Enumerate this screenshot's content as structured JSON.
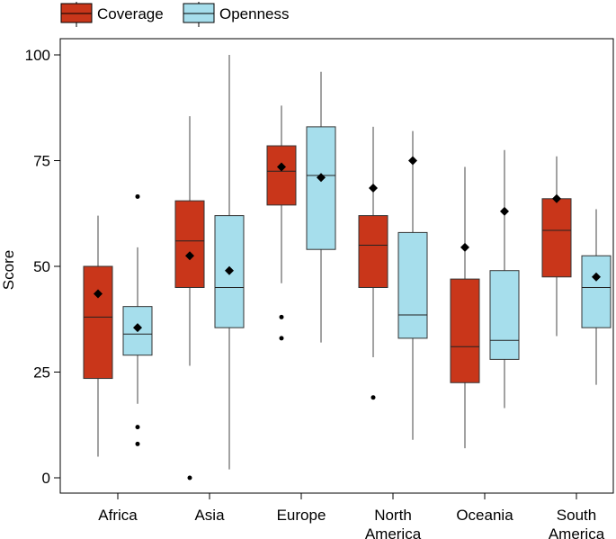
{
  "chart_data": {
    "type": "boxplot",
    "ylabel": "Score",
    "ylim": [
      0,
      100
    ],
    "yticks": [
      0,
      25,
      50,
      75,
      100
    ],
    "categories": [
      {
        "lines": [
          "Africa"
        ]
      },
      {
        "lines": [
          "Asia"
        ]
      },
      {
        "lines": [
          "Europe"
        ]
      },
      {
        "lines": [
          "North",
          "America"
        ]
      },
      {
        "lines": [
          "Oceania"
        ]
      },
      {
        "lines": [
          "South",
          "America"
        ]
      }
    ],
    "series": [
      {
        "name": "Coverage",
        "color": "#c9361a",
        "boxes": [
          {
            "whisker_low": 5,
            "q1": 23.5,
            "median": 38,
            "q3": 50,
            "whisker_high": 62,
            "mean": 43.5,
            "outliers": []
          },
          {
            "whisker_low": 26.5,
            "q1": 45,
            "median": 56,
            "q3": 65.5,
            "whisker_high": 85.5,
            "mean": 52.5,
            "outliers": [
              0
            ]
          },
          {
            "whisker_low": 46,
            "q1": 64.5,
            "median": 72.5,
            "q3": 78.5,
            "whisker_high": 88,
            "mean": 73.5,
            "outliers": [
              38,
              33
            ]
          },
          {
            "whisker_low": 28.5,
            "q1": 45,
            "median": 55,
            "q3": 62,
            "whisker_high": 83,
            "mean": 68.5,
            "outliers": [
              19
            ]
          },
          {
            "whisker_low": 7,
            "q1": 22.5,
            "median": 31,
            "q3": 47,
            "whisker_high": 73.5,
            "mean": 54.5,
            "outliers": []
          },
          {
            "whisker_low": 33.5,
            "q1": 47.5,
            "median": 58.5,
            "q3": 66,
            "whisker_high": 76,
            "mean": 66,
            "outliers": []
          }
        ]
      },
      {
        "name": "Openness",
        "color": "#a6deec",
        "boxes": [
          {
            "whisker_low": 17.5,
            "q1": 29,
            "median": 34,
            "q3": 40.5,
            "whisker_high": 54.5,
            "mean": 35.5,
            "outliers": [
              66.5,
              12,
              8
            ]
          },
          {
            "whisker_low": 2,
            "q1": 35.5,
            "median": 45,
            "q3": 62,
            "whisker_high": 100,
            "mean": 49,
            "outliers": []
          },
          {
            "whisker_low": 32,
            "q1": 54,
            "median": 71.5,
            "q3": 83,
            "whisker_high": 96,
            "mean": 71,
            "outliers": []
          },
          {
            "whisker_low": 9,
            "q1": 33,
            "median": 38.5,
            "q3": 58,
            "whisker_high": 82,
            "mean": 75,
            "outliers": []
          },
          {
            "whisker_low": 16.5,
            "q1": 28,
            "median": 32.5,
            "q3": 49,
            "whisker_high": 77.5,
            "mean": 63,
            "outliers": []
          },
          {
            "whisker_low": 22,
            "q1": 35.5,
            "median": 45,
            "q3": 52.5,
            "whisker_high": 63.5,
            "mean": 47.5,
            "outliers": []
          }
        ]
      }
    ],
    "legend": {
      "position": "top-left",
      "items": [
        "Coverage",
        "Openness"
      ]
    }
  }
}
